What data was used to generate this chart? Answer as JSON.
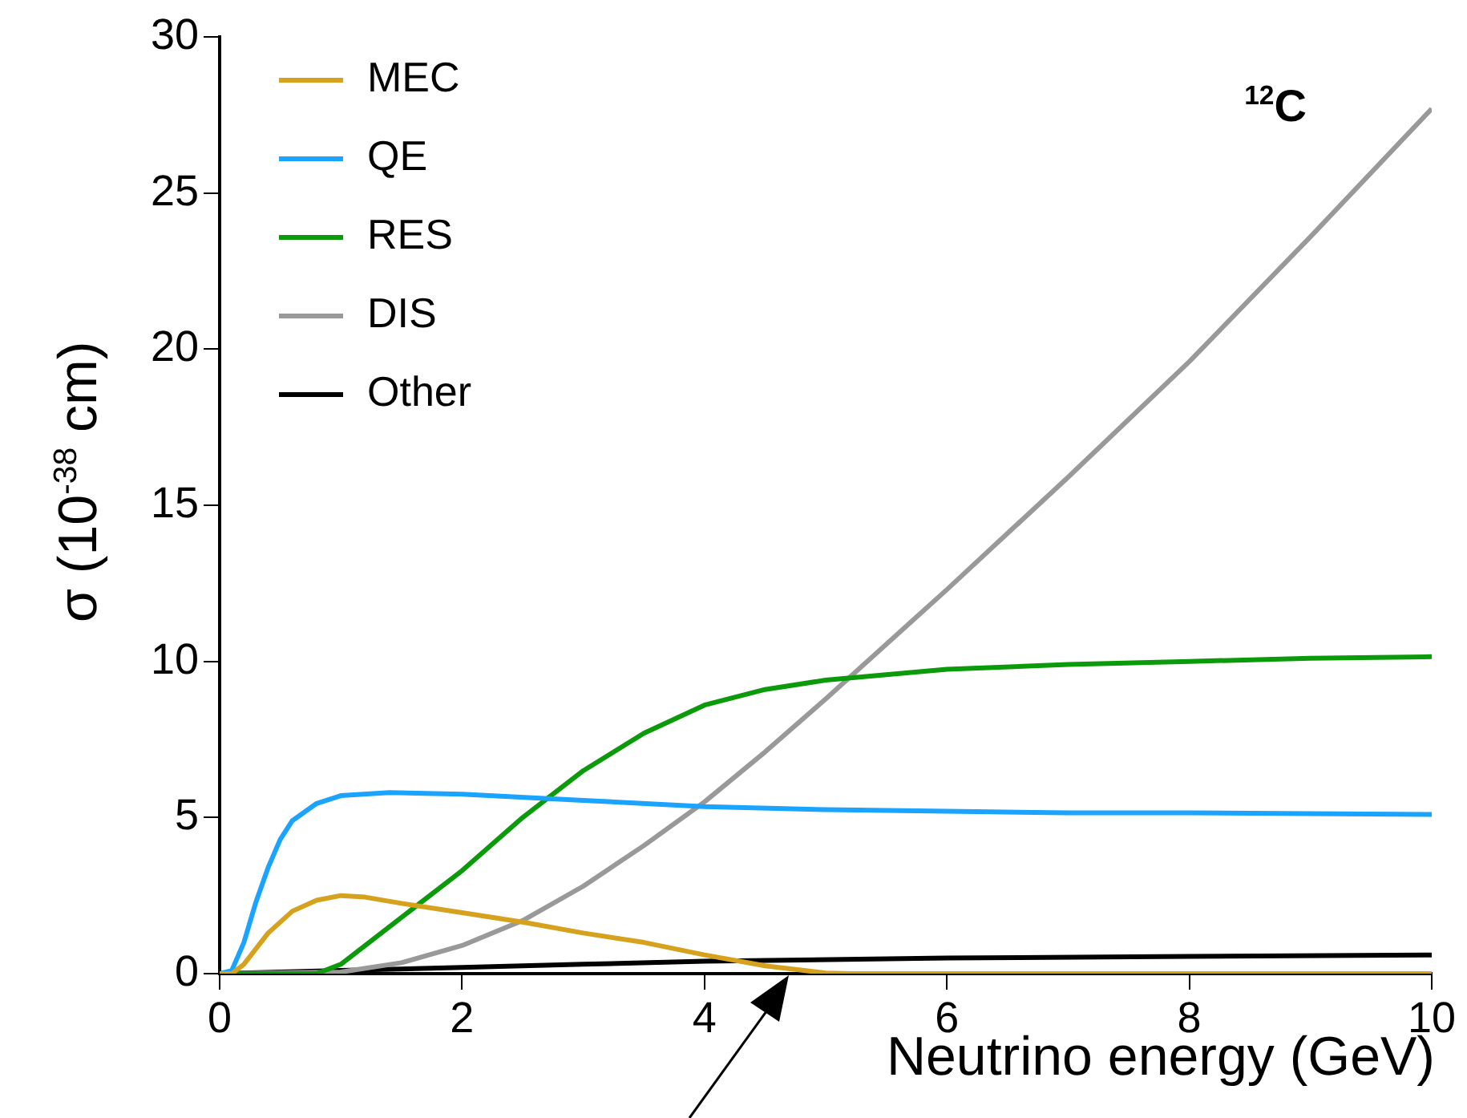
{
  "chart_data": {
    "type": "line",
    "xlabel": "Neutrino energy (GeV)",
    "ylabel": "σ (10$^{-38}$ cm)",
    "annotations": [
      "$^{12}$C"
    ],
    "xlim": [
      0,
      10
    ],
    "xticks": [
      0,
      2,
      4,
      6,
      8,
      10
    ],
    "ylim": [
      0,
      30
    ],
    "yticks": [
      0,
      5,
      10,
      15,
      20,
      25,
      30
    ],
    "grid": false,
    "legend": "top left",
    "marker": "none",
    "line_style": "solid",
    "series": [
      {
        "name": "MEC",
        "color": "#d6a21e",
        "x": [
          0,
          0.1,
          0.2,
          0.4,
          0.6,
          0.8,
          1.0,
          1.2,
          1.5,
          2,
          2.5,
          3,
          3.5,
          4,
          4.5,
          5,
          5.2,
          6,
          7,
          8,
          9,
          10
        ],
        "values": [
          0,
          0,
          0.3,
          1.3,
          2.0,
          2.35,
          2.5,
          2.45,
          2.25,
          1.95,
          1.65,
          1.3,
          1.0,
          0.6,
          0.25,
          0.02,
          0,
          0,
          0,
          0,
          0,
          0
        ]
      },
      {
        "name": "QE",
        "color": "#1aa3ff",
        "x": [
          0,
          0.1,
          0.2,
          0.3,
          0.4,
          0.5,
          0.6,
          0.8,
          1.0,
          1.4,
          2,
          3,
          4,
          5,
          6,
          7,
          8,
          10
        ],
        "values": [
          0,
          0.1,
          1.0,
          2.3,
          3.4,
          4.3,
          4.9,
          5.45,
          5.7,
          5.8,
          5.75,
          5.55,
          5.35,
          5.25,
          5.2,
          5.15,
          5.15,
          5.1
        ]
      },
      {
        "name": "RES",
        "color": "#0a9a0a",
        "x": [
          0,
          0.8,
          1.0,
          1.4,
          2,
          2.5,
          3,
          3.5,
          4,
          4.5,
          5,
          6,
          7,
          8,
          9,
          10
        ],
        "values": [
          0,
          0,
          0.3,
          1.5,
          3.3,
          5.0,
          6.5,
          7.7,
          8.6,
          9.1,
          9.4,
          9.75,
          9.9,
          10.0,
          10.1,
          10.15
        ]
      },
      {
        "name": "DIS",
        "color": "#999999",
        "x": [
          0,
          1,
          1.5,
          2,
          2.5,
          3,
          3.5,
          4,
          4.5,
          5,
          6,
          7,
          8,
          9,
          10
        ],
        "values": [
          0,
          0.05,
          0.35,
          0.9,
          1.7,
          2.8,
          4.1,
          5.5,
          7.1,
          8.8,
          12.3,
          15.9,
          19.6,
          23.6,
          27.7
        ]
      },
      {
        "name": "Other",
        "color": "#000000",
        "x": [
          0,
          1,
          2,
          3,
          4,
          6,
          8,
          10
        ],
        "values": [
          0,
          0.1,
          0.2,
          0.3,
          0.4,
          0.5,
          0.55,
          0.6
        ]
      }
    ]
  }
}
